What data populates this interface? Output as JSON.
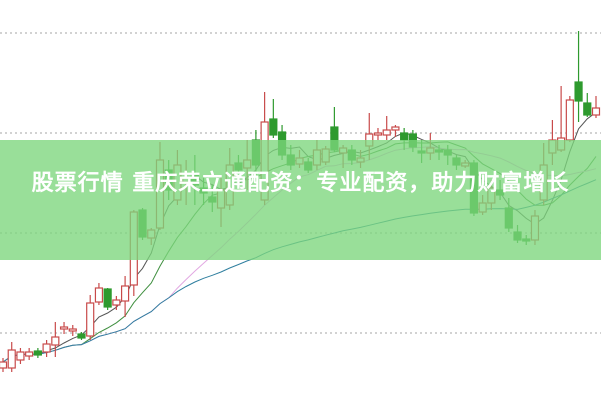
{
  "title": "股票行情 重庆荣立通配资：专业配资，助力财富增长",
  "colors": {
    "banner": "#7cd67c",
    "up": "#c84a4a",
    "down": "#2e9a2e",
    "grid": "#b8b8b8",
    "ma5": "#555555",
    "ma10": "#3f8f3f",
    "ma20": "#e2a8e2",
    "ma60": "#2f7f9f"
  },
  "chart_data": {
    "type": "candlestick",
    "title": "",
    "xlabel": "",
    "ylabel": "",
    "ylim": [
      3.2,
      43.3
    ],
    "grid": true,
    "gridlines": [
      10,
      20,
      30,
      40
    ],
    "moving_averages": [
      5,
      10,
      20,
      60
    ],
    "ohlc": [
      [
        6.5,
        7.5,
        6.1,
        7.1
      ],
      [
        6.5,
        9.1,
        6.1,
        8.3
      ],
      [
        7.3,
        8.5,
        6.9,
        8.1
      ],
      [
        7.7,
        8.5,
        7.3,
        8.1
      ],
      [
        8.2,
        8.5,
        7.5,
        7.8
      ],
      [
        8.1,
        9.3,
        7.6,
        8.9
      ],
      [
        8.8,
        11.1,
        7.6,
        9.6
      ],
      [
        10.4,
        11.1,
        9.9,
        10.6
      ],
      [
        10.2,
        10.8,
        9.7,
        10.4
      ],
      [
        9.9,
        10.1,
        9.3,
        9.5
      ],
      [
        9.7,
        13.8,
        9.3,
        13.0
      ],
      [
        13.1,
        15.0,
        12.8,
        14.5
      ],
      [
        14.4,
        14.5,
        12.3,
        12.6
      ],
      [
        12.8,
        13.7,
        12.3,
        13.3
      ],
      [
        13.2,
        15.7,
        11.6,
        14.7
      ],
      [
        14.8,
        22.3,
        13.7,
        22.1
      ],
      [
        22.3,
        22.5,
        19.3,
        19.6
      ],
      [
        19.5,
        20.5,
        18.8,
        20.3
      ],
      [
        20.5,
        29.1,
        20.3,
        27.3
      ],
      [
        26.3,
        27.3,
        23.3,
        24.3
      ],
      [
        23.3,
        28.3,
        22.8,
        26.8
      ],
      [
        25.1,
        27.3,
        22.8,
        25.5
      ],
      [
        25.8,
        27.8,
        22.8,
        24.8
      ],
      [
        24.5,
        25.8,
        22.8,
        24.0
      ],
      [
        23.6,
        24.8,
        22.1,
        23.1
      ],
      [
        22.5,
        25.8,
        20.6,
        24.3
      ],
      [
        22.8,
        28.5,
        22.3,
        26.8
      ],
      [
        27.0,
        27.8,
        24.8,
        26.3
      ],
      [
        26.5,
        29.3,
        24.3,
        27.3
      ],
      [
        29.3,
        30.3,
        25.8,
        26.8
      ],
      [
        23.3,
        34.1,
        22.8,
        31.1
      ],
      [
        31.4,
        33.4,
        29.5,
        29.8
      ],
      [
        30.1,
        30.8,
        27.3,
        27.8
      ],
      [
        27.8,
        28.8,
        26.3,
        26.8
      ],
      [
        26.9,
        28.3,
        26.5,
        27.5
      ],
      [
        27.1,
        27.5,
        26.0,
        26.3
      ],
      [
        26.8,
        29.3,
        26.3,
        28.3
      ],
      [
        27.1,
        28.7,
        26.8,
        28.4
      ],
      [
        30.6,
        32.6,
        28.1,
        28.3
      ],
      [
        28.0,
        28.8,
        26.5,
        28.5
      ],
      [
        28.3,
        28.8,
        26.8,
        27.3
      ],
      [
        27.1,
        28.3,
        26.5,
        27.5
      ],
      [
        28.7,
        32.0,
        27.3,
        29.9
      ],
      [
        29.8,
        30.5,
        29.3,
        30.0
      ],
      [
        29.8,
        31.7,
        29.3,
        30.3
      ],
      [
        30.3,
        30.8,
        29.6,
        30.6
      ],
      [
        30.0,
        30.5,
        28.3,
        29.3
      ],
      [
        29.9,
        30.3,
        28.1,
        28.6
      ],
      [
        28.2,
        29.3,
        27.0,
        28.0
      ],
      [
        28.0,
        30.0,
        27.3,
        28.5
      ],
      [
        28.3,
        28.8,
        27.3,
        28.1
      ],
      [
        28.3,
        28.8,
        26.8,
        27.8
      ],
      [
        27.5,
        27.8,
        26.3,
        26.8
      ],
      [
        26.7,
        27.3,
        26.5,
        27.0
      ],
      [
        27.0,
        27.3,
        21.7,
        22.0
      ],
      [
        22.1,
        23.8,
        21.8,
        23.0
      ],
      [
        23.0,
        25.3,
        22.3,
        24.5
      ],
      [
        24.3,
        25.3,
        23.3,
        23.8
      ],
      [
        22.5,
        23.5,
        20.1,
        20.5
      ],
      [
        20.1,
        20.8,
        19.0,
        19.3
      ],
      [
        19.4,
        19.8,
        18.8,
        19.2
      ],
      [
        19.3,
        22.3,
        18.8,
        21.7
      ],
      [
        23.3,
        29.0,
        22.8,
        26.8
      ],
      [
        28.0,
        31.3,
        26.8,
        29.3
      ],
      [
        28.3,
        34.7,
        28.1,
        29.5
      ],
      [
        29.3,
        33.7,
        29.1,
        33.3
      ],
      [
        35.1,
        40.2,
        31.1,
        33.2
      ],
      [
        33.0,
        34.0,
        31.6,
        31.8
      ],
      [
        31.8,
        33.7,
        31.5,
        32.5
      ]
    ]
  }
}
